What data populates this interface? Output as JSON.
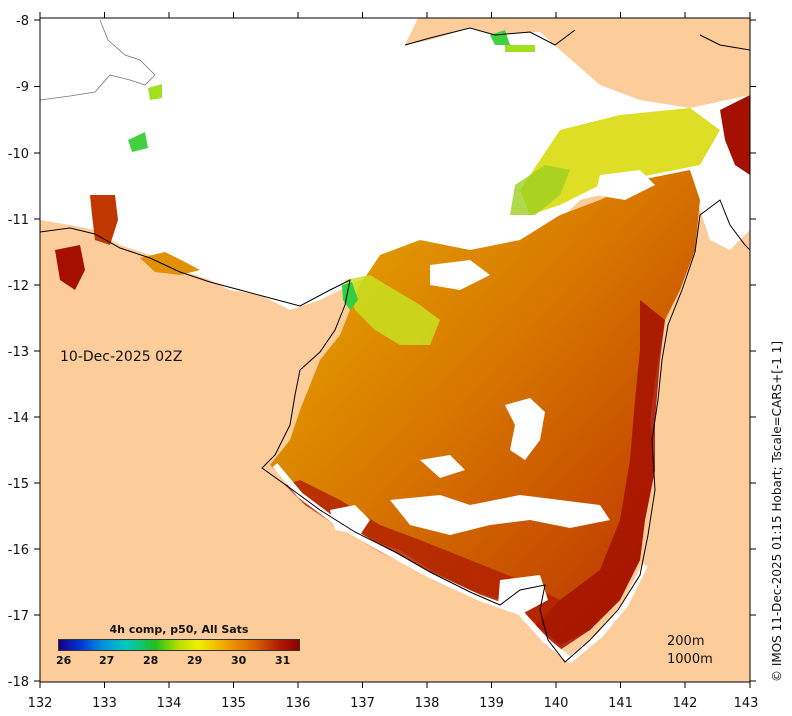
{
  "map": {
    "timestamp": "10-Dec-2025 02Z",
    "credit": "© IMOS 11-Dec-2025 01:15 Hobart; Tscale=CARS+[-1 1]",
    "contours": [
      "200m",
      "1000m"
    ],
    "x_ticks": [
      "132",
      "133",
      "134",
      "135",
      "136",
      "137",
      "138",
      "139",
      "140",
      "141",
      "142",
      "143"
    ],
    "y_ticks": [
      "-8",
      "-9",
      "-10",
      "-11",
      "-12",
      "-13",
      "-14",
      "-15",
      "-16",
      "-17",
      "-18"
    ],
    "legend": {
      "title": "4h comp, p50, All Sats",
      "ticks": [
        "26",
        "27",
        "28",
        "29",
        "30",
        "31"
      ]
    },
    "colors": {
      "land": "#fdcc9b",
      "no_data": "#ffffff",
      "sst_warm": "#c04000",
      "sst_hot": "#a51000",
      "sst_mid": "#e08a00",
      "sst_cool": "#c8e020"
    }
  }
}
